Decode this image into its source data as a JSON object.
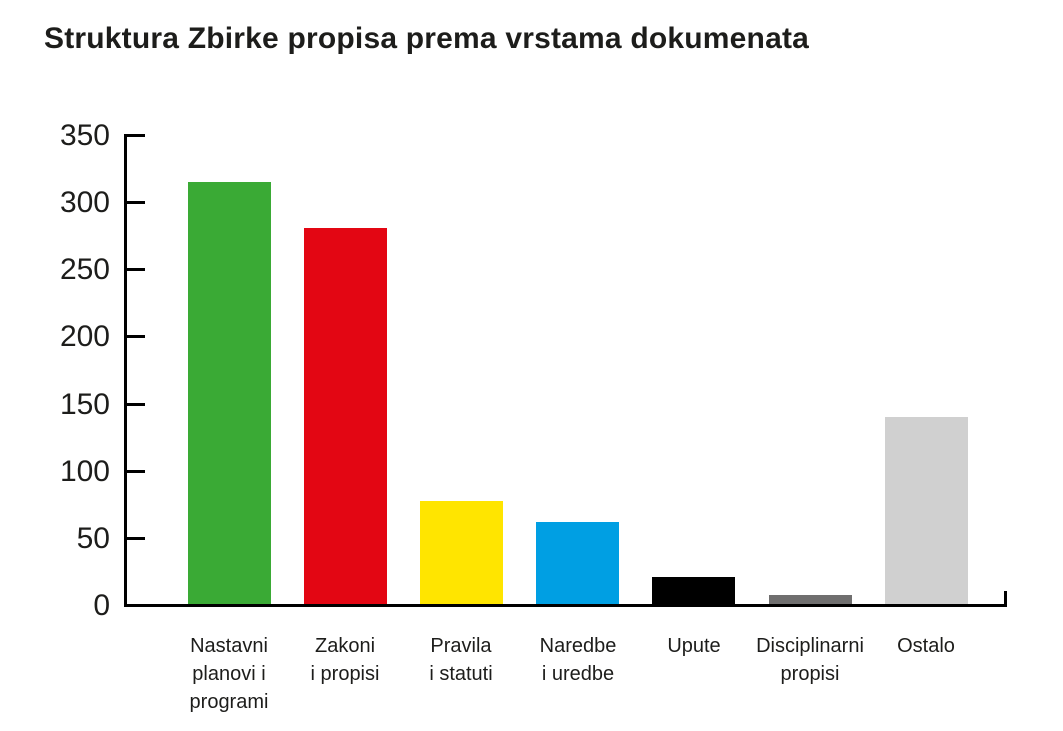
{
  "chart_data": {
    "type": "bar",
    "title": "Struktura Zbirke propisa prema vrstama dokumenata",
    "categories": [
      "Nastavni planovi i programi",
      "Zakoni i propisi",
      "Pravila i statuti",
      "Naredbe i uredbe",
      "Upute",
      "Disciplinarni propisi",
      "Ostalo"
    ],
    "categories_lines": [
      [
        "Nastavni",
        "planovi i",
        "programi"
      ],
      [
        "Zakoni",
        "i propisi"
      ],
      [
        "Pravila",
        "i statuti"
      ],
      [
        "Naredbe",
        "i uredbe"
      ],
      [
        "Upute"
      ],
      [
        "Disciplinarni",
        "propisi"
      ],
      [
        "Ostalo"
      ]
    ],
    "values": [
      314,
      280,
      77,
      61,
      20,
      7,
      139
    ],
    "bar_colors": [
      "#3aaa35",
      "#e30613",
      "#ffe500",
      "#009fe3",
      "#000000",
      "#706f6f",
      "#d0d0d0"
    ],
    "xlabel": "",
    "ylabel": "",
    "ylim": [
      0,
      350
    ],
    "yticks": [
      350,
      300,
      250,
      200,
      150,
      100,
      50,
      0
    ],
    "grid": false,
    "legend": false,
    "axis_color": "#000000",
    "text_color": "#1d1d1b"
  }
}
